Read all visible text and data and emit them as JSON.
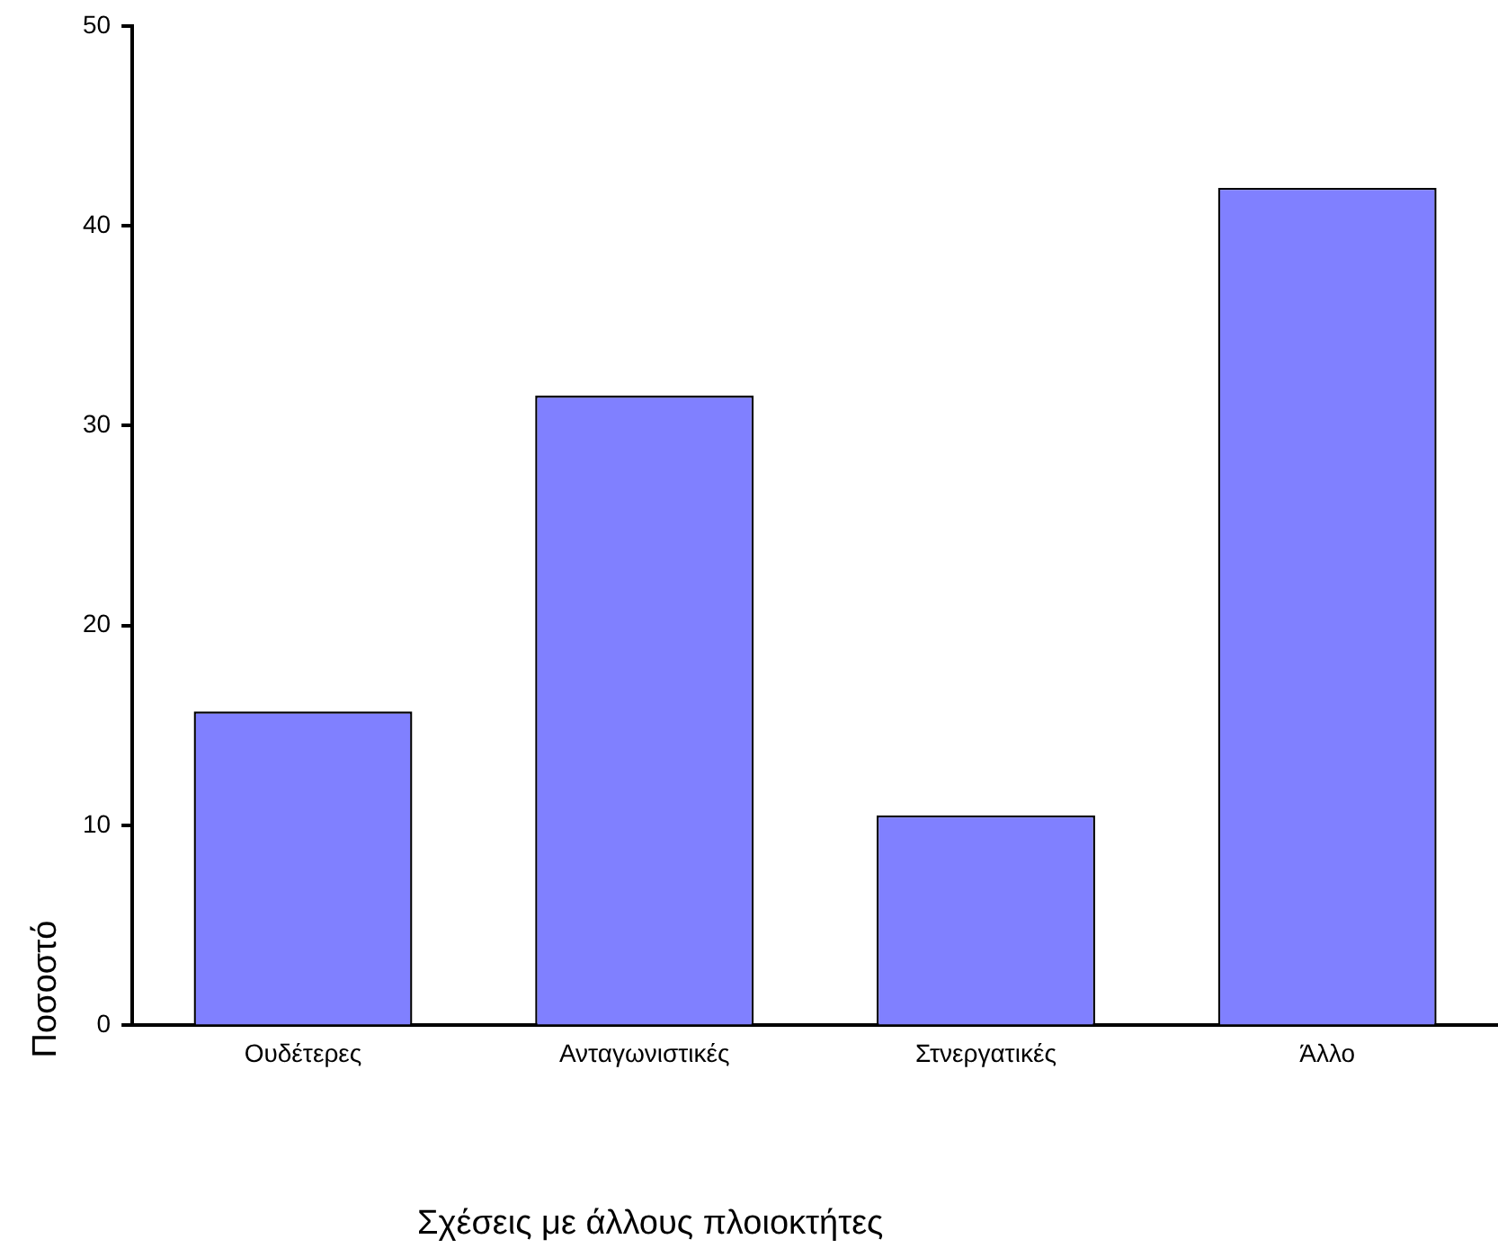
{
  "chart_data": {
    "type": "bar",
    "xlabel": "Σχέσεις με άλλους πλοιοκτήτες",
    "ylabel": "Ποσοστό",
    "categories": [
      "Ουδέτερες",
      "Ανταγωνιστικές",
      "Στνεργατικές",
      "Άλλο"
    ],
    "values": [
      15.7,
      31.5,
      10.5,
      41.9
    ],
    "color": "#8080ff",
    "ylim": [
      0,
      50
    ],
    "yticks": [
      0,
      10,
      20,
      30,
      40,
      50
    ],
    "grid": false,
    "legend": false
  }
}
